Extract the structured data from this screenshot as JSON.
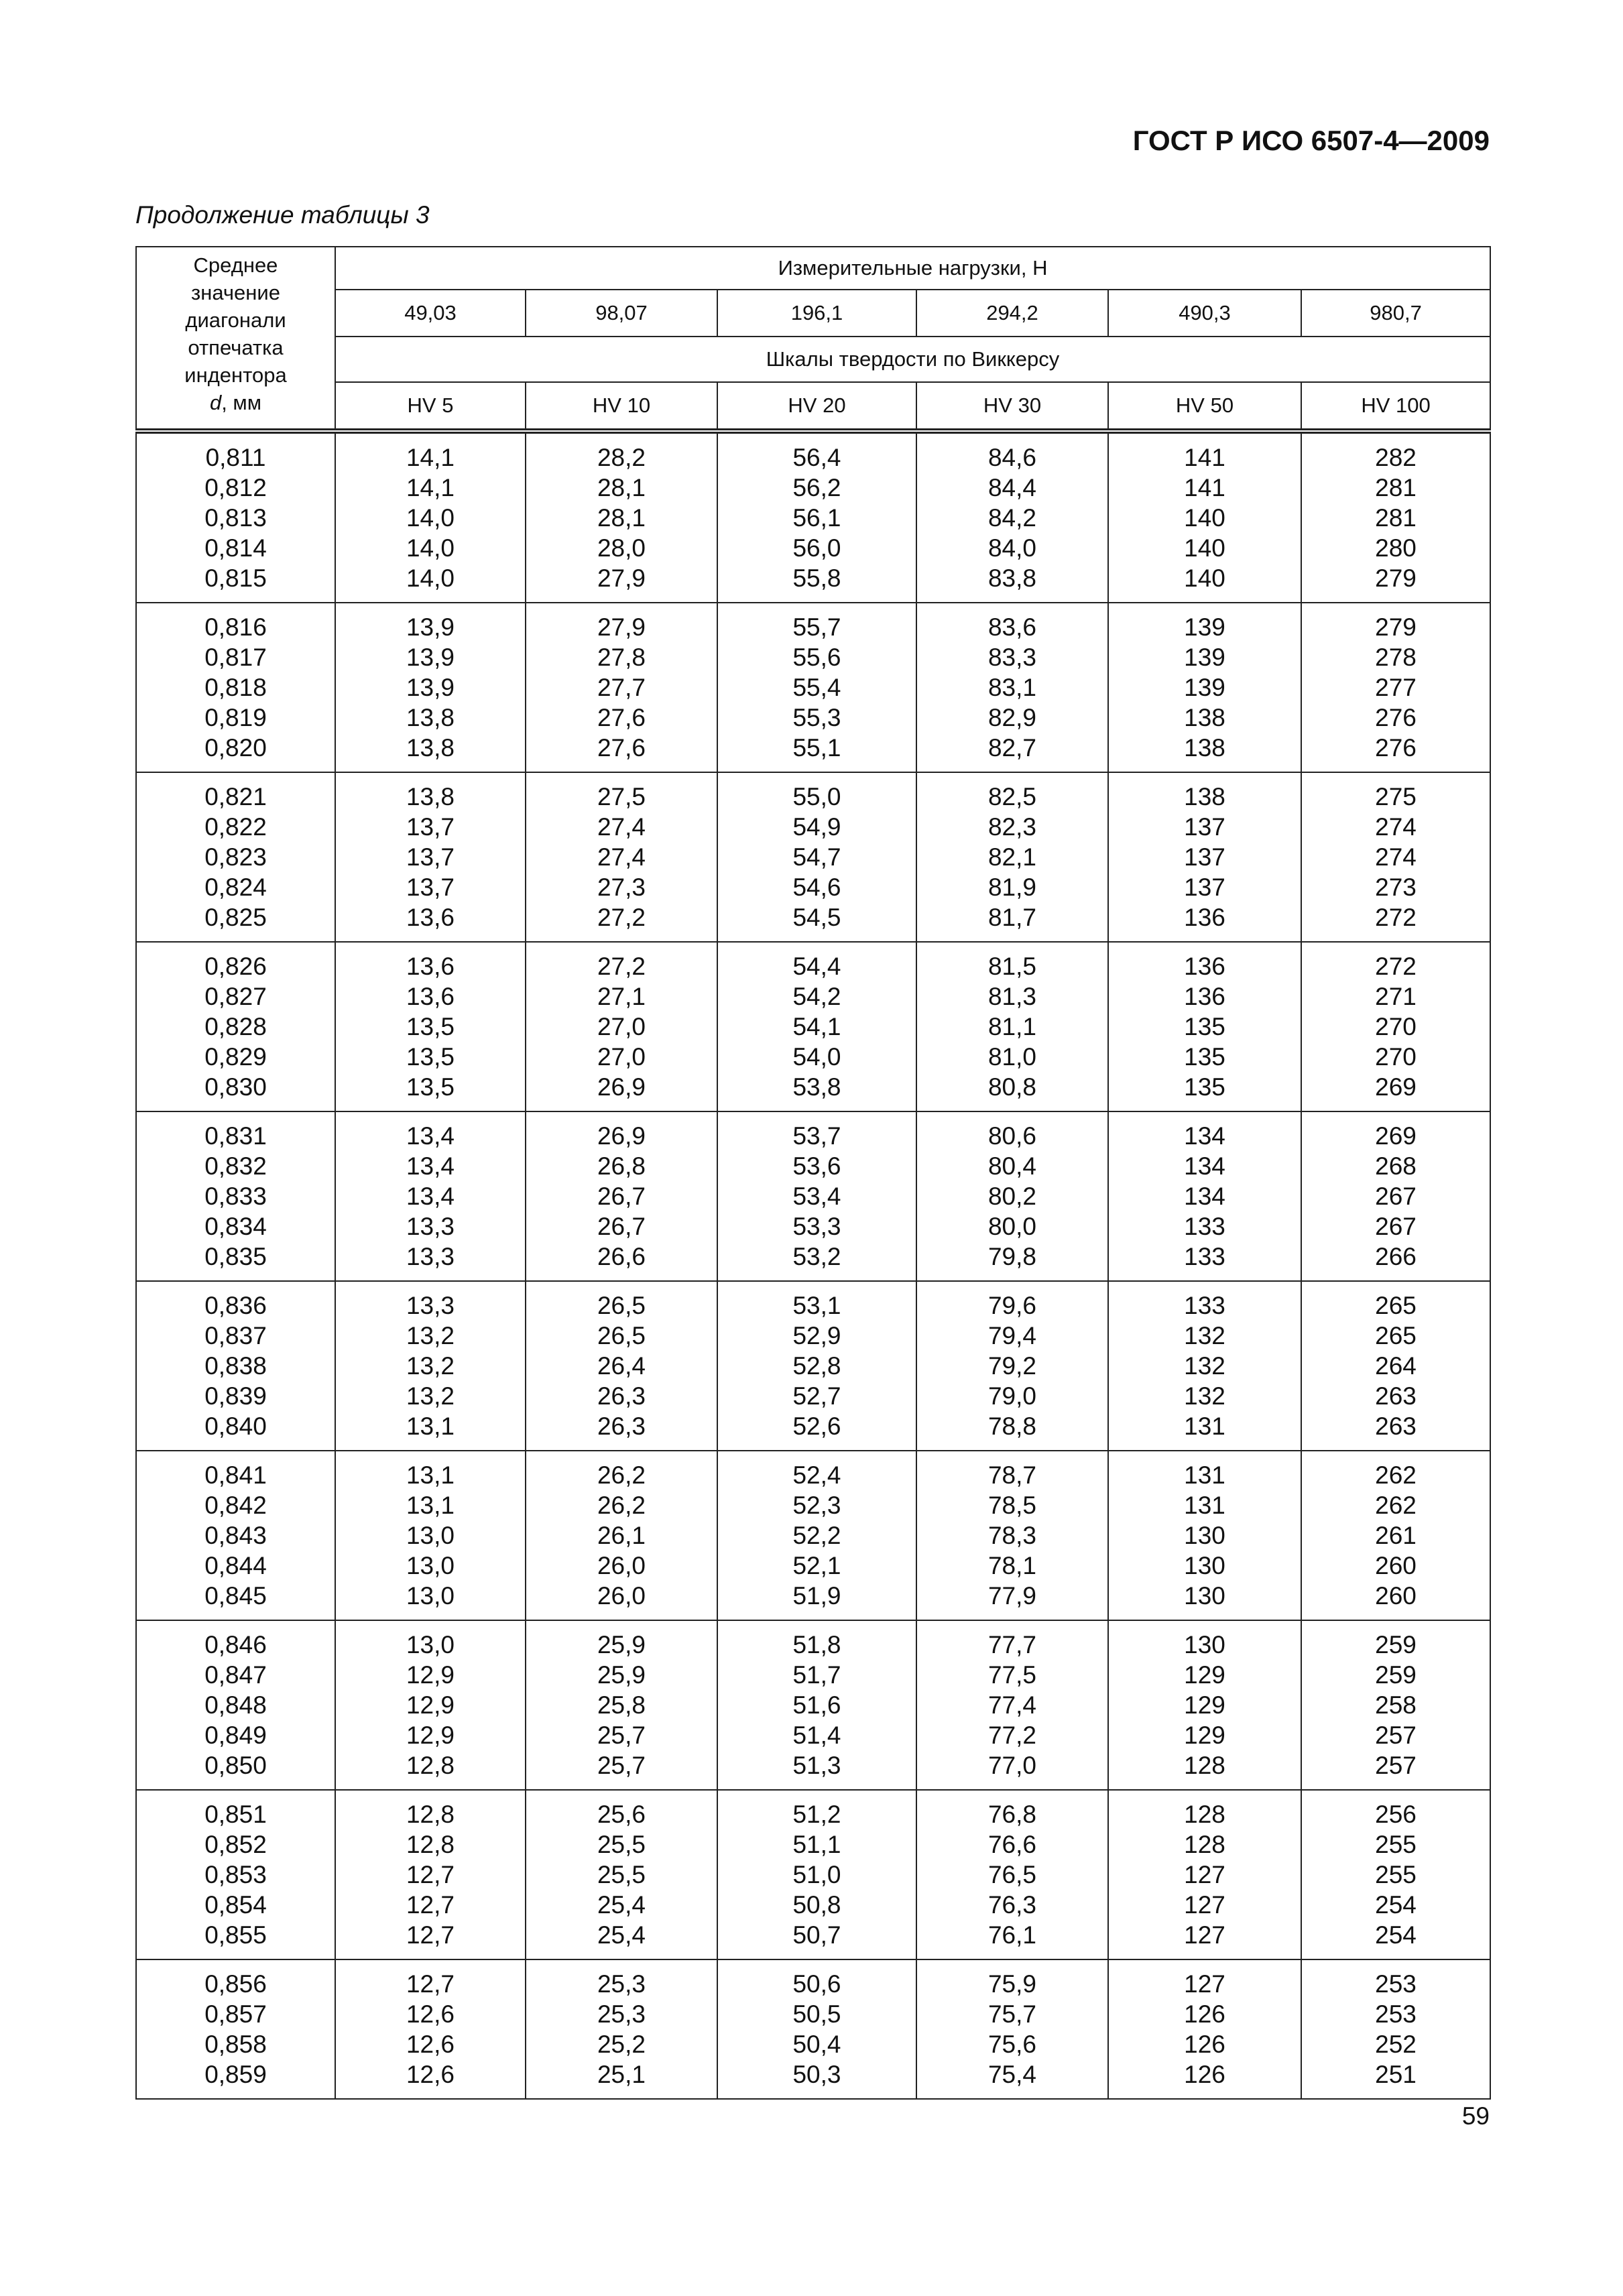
{
  "header": {
    "doc_id": "ГОСТ Р ИСО 6507-4—2009"
  },
  "caption": "Продолжение таблицы 3",
  "table": {
    "corner_lines": [
      "Среднее",
      "значение",
      "диагонали",
      "отпечатка",
      "индентора"
    ],
    "corner_symbol": "d",
    "corner_unit": ", мм",
    "loads_title": "Измерительные нагрузки, Н",
    "loads": [
      "49,03",
      "98,07",
      "196,1",
      "294,2",
      "490,3",
      "980,7"
    ],
    "scales_title": "Шкалы твердости по Виккерсу",
    "scales": [
      "HV 5",
      "HV 10",
      "HV 20",
      "HV 30",
      "HV 50",
      "HV 100"
    ],
    "groups": [
      [
        [
          "0,811",
          "14,1",
          "28,2",
          "56,4",
          "84,6",
          "141",
          "282"
        ],
        [
          "0,812",
          "14,1",
          "28,1",
          "56,2",
          "84,4",
          "141",
          "281"
        ],
        [
          "0,813",
          "14,0",
          "28,1",
          "56,1",
          "84,2",
          "140",
          "281"
        ],
        [
          "0,814",
          "14,0",
          "28,0",
          "56,0",
          "84,0",
          "140",
          "280"
        ],
        [
          "0,815",
          "14,0",
          "27,9",
          "55,8",
          "83,8",
          "140",
          "279"
        ]
      ],
      [
        [
          "0,816",
          "13,9",
          "27,9",
          "55,7",
          "83,6",
          "139",
          "279"
        ],
        [
          "0,817",
          "13,9",
          "27,8",
          "55,6",
          "83,3",
          "139",
          "278"
        ],
        [
          "0,818",
          "13,9",
          "27,7",
          "55,4",
          "83,1",
          "139",
          "277"
        ],
        [
          "0,819",
          "13,8",
          "27,6",
          "55,3",
          "82,9",
          "138",
          "276"
        ],
        [
          "0,820",
          "13,8",
          "27,6",
          "55,1",
          "82,7",
          "138",
          "276"
        ]
      ],
      [
        [
          "0,821",
          "13,8",
          "27,5",
          "55,0",
          "82,5",
          "138",
          "275"
        ],
        [
          "0,822",
          "13,7",
          "27,4",
          "54,9",
          "82,3",
          "137",
          "274"
        ],
        [
          "0,823",
          "13,7",
          "27,4",
          "54,7",
          "82,1",
          "137",
          "274"
        ],
        [
          "0,824",
          "13,7",
          "27,3",
          "54,6",
          "81,9",
          "137",
          "273"
        ],
        [
          "0,825",
          "13,6",
          "27,2",
          "54,5",
          "81,7",
          "136",
          "272"
        ]
      ],
      [
        [
          "0,826",
          "13,6",
          "27,2",
          "54,4",
          "81,5",
          "136",
          "272"
        ],
        [
          "0,827",
          "13,6",
          "27,1",
          "54,2",
          "81,3",
          "136",
          "271"
        ],
        [
          "0,828",
          "13,5",
          "27,0",
          "54,1",
          "81,1",
          "135",
          "270"
        ],
        [
          "0,829",
          "13,5",
          "27,0",
          "54,0",
          "81,0",
          "135",
          "270"
        ],
        [
          "0,830",
          "13,5",
          "26,9",
          "53,8",
          "80,8",
          "135",
          "269"
        ]
      ],
      [
        [
          "0,831",
          "13,4",
          "26,9",
          "53,7",
          "80,6",
          "134",
          "269"
        ],
        [
          "0,832",
          "13,4",
          "26,8",
          "53,6",
          "80,4",
          "134",
          "268"
        ],
        [
          "0,833",
          "13,4",
          "26,7",
          "53,4",
          "80,2",
          "134",
          "267"
        ],
        [
          "0,834",
          "13,3",
          "26,7",
          "53,3",
          "80,0",
          "133",
          "267"
        ],
        [
          "0,835",
          "13,3",
          "26,6",
          "53,2",
          "79,8",
          "133",
          "266"
        ]
      ],
      [
        [
          "0,836",
          "13,3",
          "26,5",
          "53,1",
          "79,6",
          "133",
          "265"
        ],
        [
          "0,837",
          "13,2",
          "26,5",
          "52,9",
          "79,4",
          "132",
          "265"
        ],
        [
          "0,838",
          "13,2",
          "26,4",
          "52,8",
          "79,2",
          "132",
          "264"
        ],
        [
          "0,839",
          "13,2",
          "26,3",
          "52,7",
          "79,0",
          "132",
          "263"
        ],
        [
          "0,840",
          "13,1",
          "26,3",
          "52,6",
          "78,8",
          "131",
          "263"
        ]
      ],
      [
        [
          "0,841",
          "13,1",
          "26,2",
          "52,4",
          "78,7",
          "131",
          "262"
        ],
        [
          "0,842",
          "13,1",
          "26,2",
          "52,3",
          "78,5",
          "131",
          "262"
        ],
        [
          "0,843",
          "13,0",
          "26,1",
          "52,2",
          "78,3",
          "130",
          "261"
        ],
        [
          "0,844",
          "13,0",
          "26,0",
          "52,1",
          "78,1",
          "130",
          "260"
        ],
        [
          "0,845",
          "13,0",
          "26,0",
          "51,9",
          "77,9",
          "130",
          "260"
        ]
      ],
      [
        [
          "0,846",
          "13,0",
          "25,9",
          "51,8",
          "77,7",
          "130",
          "259"
        ],
        [
          "0,847",
          "12,9",
          "25,9",
          "51,7",
          "77,5",
          "129",
          "259"
        ],
        [
          "0,848",
          "12,9",
          "25,8",
          "51,6",
          "77,4",
          "129",
          "258"
        ],
        [
          "0,849",
          "12,9",
          "25,7",
          "51,4",
          "77,2",
          "129",
          "257"
        ],
        [
          "0,850",
          "12,8",
          "25,7",
          "51,3",
          "77,0",
          "128",
          "257"
        ]
      ],
      [
        [
          "0,851",
          "12,8",
          "25,6",
          "51,2",
          "76,8",
          "128",
          "256"
        ],
        [
          "0,852",
          "12,8",
          "25,5",
          "51,1",
          "76,6",
          "128",
          "255"
        ],
        [
          "0,853",
          "12,7",
          "25,5",
          "51,0",
          "76,5",
          "127",
          "255"
        ],
        [
          "0,854",
          "12,7",
          "25,4",
          "50,8",
          "76,3",
          "127",
          "254"
        ],
        [
          "0,855",
          "12,7",
          "25,4",
          "50,7",
          "76,1",
          "127",
          "254"
        ]
      ],
      [
        [
          "0,856",
          "12,7",
          "25,3",
          "50,6",
          "75,9",
          "127",
          "253"
        ],
        [
          "0,857",
          "12,6",
          "25,3",
          "50,5",
          "75,7",
          "126",
          "253"
        ],
        [
          "0,858",
          "12,6",
          "25,2",
          "50,4",
          "75,6",
          "126",
          "252"
        ],
        [
          "0,859",
          "12,6",
          "25,1",
          "50,3",
          "75,4",
          "126",
          "251"
        ]
      ]
    ]
  },
  "page_number": "59"
}
